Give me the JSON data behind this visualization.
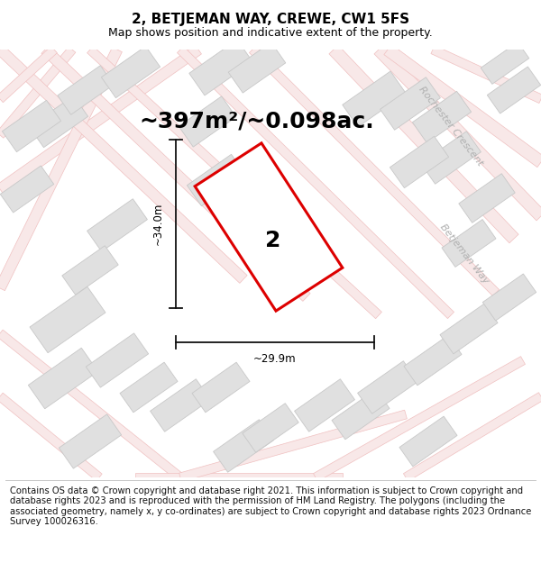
{
  "title": "2, BETJEMAN WAY, CREWE, CW1 5FS",
  "subtitle": "Map shows position and indicative extent of the property.",
  "area_text": "~397m²/~0.098ac.",
  "label_number": "2",
  "dim_width": "~29.9m",
  "dim_height": "~34.0m",
  "road_label_1": "Rochester Crescent",
  "road_label_2": "Betjeman Way",
  "footer_text": "Contains OS data © Crown copyright and database right 2021. This information is subject to Crown copyright and database rights 2023 and is reproduced with the permission of HM Land Registry. The polygons (including the associated geometry, namely x, y co-ordinates) are subject to Crown copyright and database rights 2023 Ordnance Survey 100026316.",
  "map_bg": "#ffffff",
  "road_color": "#f0c0c0",
  "road_fill": "#f8e8e8",
  "building_color": "#e0e0e0",
  "building_edge": "#c8c8c8",
  "plot_color": "#dd0000",
  "plot_fill": "#ffffff",
  "dim_line_color": "#111111",
  "title_fontsize": 11,
  "subtitle_fontsize": 9,
  "area_fontsize": 18,
  "footer_fontsize": 7.2,
  "road_label_color": "#b0b0b0",
  "road_label_size": 8
}
